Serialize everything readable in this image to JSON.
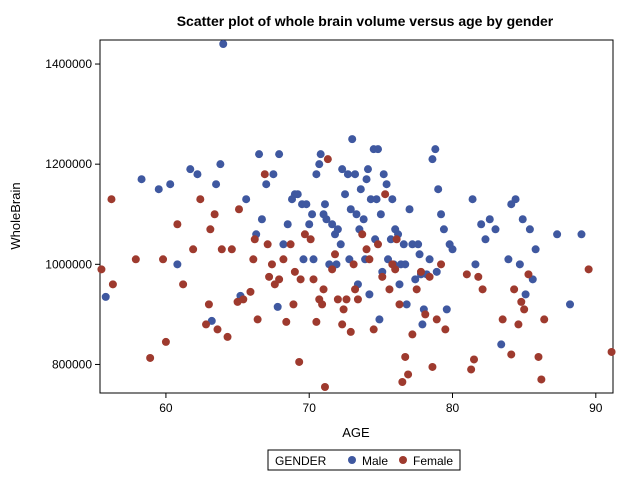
{
  "chart_data": {
    "type": "scatter",
    "title": "Scatter plot of whole brain volume versus age by gender",
    "xlabel": "AGE",
    "ylabel": "WholeBrain",
    "xlim": [
      55.4,
      91.2
    ],
    "ylim": [
      743000,
      1448000
    ],
    "x_ticks": [
      60,
      70,
      80,
      90
    ],
    "y_ticks": [
      800000,
      1000000,
      1200000,
      1400000
    ],
    "grid": false,
    "legend_title": "GENDER",
    "legend_position": "bottom-center",
    "series": [
      {
        "name": "Male",
        "color": "#3f58a0",
        "points": [
          [
            64.0,
            1440000
          ],
          [
            55.8,
            935000
          ],
          [
            58.3,
            1170000
          ],
          [
            59.5,
            1150000
          ],
          [
            60.3,
            1160000
          ],
          [
            60.8,
            1000000
          ],
          [
            61.7,
            1190000
          ],
          [
            62.2,
            1180000
          ],
          [
            63.5,
            1160000
          ],
          [
            63.8,
            1200000
          ],
          [
            65.2,
            937000
          ],
          [
            65.6,
            1130000
          ],
          [
            63.2,
            887000
          ],
          [
            66.3,
            1060000
          ],
          [
            66.5,
            1220000
          ],
          [
            66.7,
            1090000
          ],
          [
            67.0,
            1160000
          ],
          [
            67.5,
            1180000
          ],
          [
            67.9,
            1220000
          ],
          [
            67.8,
            915000
          ],
          [
            68.5,
            1080000
          ],
          [
            68.8,
            1130000
          ],
          [
            69.0,
            1140000
          ],
          [
            69.2,
            1140000
          ],
          [
            69.5,
            1120000
          ],
          [
            69.8,
            1120000
          ],
          [
            70.0,
            1080000
          ],
          [
            70.2,
            1100000
          ],
          [
            70.5,
            1180000
          ],
          [
            70.7,
            1200000
          ],
          [
            70.8,
            1220000
          ],
          [
            71.0,
            1100000
          ],
          [
            71.2,
            1090000
          ],
          [
            71.4,
            1000000
          ],
          [
            71.6,
            1080000
          ],
          [
            71.8,
            1060000
          ],
          [
            72.0,
            1070000
          ],
          [
            72.2,
            1040000
          ],
          [
            72.5,
            1140000
          ],
          [
            72.7,
            1180000
          ],
          [
            72.9,
            1110000
          ],
          [
            73.0,
            1250000
          ],
          [
            73.2,
            1180000
          ],
          [
            73.3,
            1100000
          ],
          [
            73.5,
            1070000
          ],
          [
            73.6,
            1150000
          ],
          [
            73.8,
            1090000
          ],
          [
            74.0,
            1170000
          ],
          [
            74.1,
            1190000
          ],
          [
            74.3,
            1130000
          ],
          [
            74.5,
            1230000
          ],
          [
            74.6,
            1050000
          ],
          [
            74.8,
            1230000
          ],
          [
            75.0,
            1100000
          ],
          [
            75.2,
            1180000
          ],
          [
            75.4,
            1160000
          ],
          [
            75.5,
            1010000
          ],
          [
            75.7,
            1050000
          ],
          [
            75.8,
            1130000
          ],
          [
            76.0,
            1070000
          ],
          [
            76.2,
            1060000
          ],
          [
            76.4,
            1000000
          ],
          [
            76.6,
            1040000
          ],
          [
            76.8,
            920000
          ],
          [
            77.0,
            1110000
          ],
          [
            77.2,
            1040000
          ],
          [
            77.4,
            970000
          ],
          [
            77.6,
            1040000
          ],
          [
            77.8,
            980000
          ],
          [
            78.0,
            910000
          ],
          [
            78.2,
            980000
          ],
          [
            78.4,
            1010000
          ],
          [
            78.6,
            1210000
          ],
          [
            78.8,
            1230000
          ],
          [
            79.0,
            1150000
          ],
          [
            79.2,
            1100000
          ],
          [
            79.4,
            1070000
          ],
          [
            79.6,
            910000
          ],
          [
            79.8,
            1040000
          ],
          [
            80.0,
            1030000
          ],
          [
            81.4,
            1130000
          ],
          [
            81.6,
            1000000
          ],
          [
            82.0,
            1080000
          ],
          [
            82.3,
            1050000
          ],
          [
            82.6,
            1090000
          ],
          [
            83.0,
            1070000
          ],
          [
            83.4,
            840000
          ],
          [
            83.9,
            1010000
          ],
          [
            84.1,
            1120000
          ],
          [
            84.4,
            1130000
          ],
          [
            84.7,
            1000000
          ],
          [
            84.9,
            1090000
          ],
          [
            85.1,
            940000
          ],
          [
            85.4,
            1070000
          ],
          [
            85.6,
            970000
          ],
          [
            85.8,
            1030000
          ],
          [
            87.3,
            1060000
          ],
          [
            88.2,
            920000
          ],
          [
            89.0,
            1060000
          ],
          [
            77.9,
            880000
          ],
          [
            72.8,
            1010000
          ],
          [
            70.3,
            1010000
          ],
          [
            71.9,
            1000000
          ],
          [
            74.2,
            940000
          ],
          [
            74.9,
            890000
          ],
          [
            76.7,
            1000000
          ],
          [
            73.4,
            960000
          ],
          [
            75.1,
            985000
          ],
          [
            72.3,
            1190000
          ],
          [
            71.1,
            1120000
          ],
          [
            74.7,
            1130000
          ],
          [
            73.9,
            1010000
          ],
          [
            75.9,
            1000000
          ],
          [
            76.3,
            960000
          ],
          [
            77.7,
            1020000
          ],
          [
            78.9,
            985000
          ],
          [
            69.6,
            1010000
          ],
          [
            68.2,
            1040000
          ]
        ]
      },
      {
        "name": "Female",
        "color": "#9e3a2e",
        "points": [
          [
            55.5,
            990000
          ],
          [
            56.2,
            1130000
          ],
          [
            56.3,
            960000
          ],
          [
            57.9,
            1010000
          ],
          [
            58.9,
            813000
          ],
          [
            59.8,
            1010000
          ],
          [
            60.0,
            845000
          ],
          [
            60.8,
            1080000
          ],
          [
            61.2,
            960000
          ],
          [
            61.9,
            1030000
          ],
          [
            62.4,
            1130000
          ],
          [
            62.8,
            880000
          ],
          [
            63.0,
            920000
          ],
          [
            63.1,
            1070000
          ],
          [
            63.4,
            1100000
          ],
          [
            63.6,
            870000
          ],
          [
            63.9,
            1030000
          ],
          [
            64.3,
            855000
          ],
          [
            64.6,
            1030000
          ],
          [
            65.0,
            925000
          ],
          [
            65.1,
            1110000
          ],
          [
            65.4,
            930000
          ],
          [
            65.9,
            945000
          ],
          [
            66.1,
            1010000
          ],
          [
            66.4,
            890000
          ],
          [
            66.9,
            1180000
          ],
          [
            67.1,
            1040000
          ],
          [
            67.4,
            1000000
          ],
          [
            67.6,
            960000
          ],
          [
            67.9,
            970000
          ],
          [
            68.2,
            1010000
          ],
          [
            68.4,
            885000
          ],
          [
            68.7,
            1040000
          ],
          [
            69.0,
            985000
          ],
          [
            69.3,
            805000
          ],
          [
            69.4,
            970000
          ],
          [
            69.7,
            1060000
          ],
          [
            70.1,
            1050000
          ],
          [
            70.3,
            970000
          ],
          [
            70.5,
            885000
          ],
          [
            70.7,
            930000
          ],
          [
            71.0,
            950000
          ],
          [
            71.1,
            755000
          ],
          [
            71.3,
            1210000
          ],
          [
            71.6,
            990000
          ],
          [
            71.8,
            1020000
          ],
          [
            72.0,
            930000
          ],
          [
            72.3,
            880000
          ],
          [
            72.6,
            930000
          ],
          [
            72.9,
            865000
          ],
          [
            73.1,
            1000000
          ],
          [
            73.4,
            930000
          ],
          [
            73.7,
            1060000
          ],
          [
            74.0,
            1030000
          ],
          [
            74.2,
            1010000
          ],
          [
            74.5,
            870000
          ],
          [
            74.8,
            1040000
          ],
          [
            75.1,
            975000
          ],
          [
            75.3,
            1140000
          ],
          [
            75.6,
            950000
          ],
          [
            75.8,
            1000000
          ],
          [
            76.1,
            1050000
          ],
          [
            76.3,
            920000
          ],
          [
            76.5,
            765000
          ],
          [
            76.7,
            815000
          ],
          [
            76.9,
            780000
          ],
          [
            77.2,
            860000
          ],
          [
            77.5,
            950000
          ],
          [
            77.8,
            985000
          ],
          [
            78.1,
            900000
          ],
          [
            78.4,
            975000
          ],
          [
            78.6,
            795000
          ],
          [
            78.9,
            890000
          ],
          [
            79.2,
            1000000
          ],
          [
            79.5,
            870000
          ],
          [
            81.0,
            980000
          ],
          [
            81.3,
            790000
          ],
          [
            81.5,
            810000
          ],
          [
            81.8,
            975000
          ],
          [
            82.1,
            950000
          ],
          [
            83.5,
            890000
          ],
          [
            84.1,
            820000
          ],
          [
            84.3,
            950000
          ],
          [
            84.6,
            880000
          ],
          [
            84.8,
            925000
          ],
          [
            85.0,
            910000
          ],
          [
            85.3,
            980000
          ],
          [
            86.0,
            815000
          ],
          [
            86.2,
            770000
          ],
          [
            86.4,
            890000
          ],
          [
            89.5,
            990000
          ],
          [
            91.1,
            825000
          ],
          [
            76.0,
            990000
          ],
          [
            73.2,
            950000
          ],
          [
            72.4,
            910000
          ],
          [
            70.9,
            920000
          ],
          [
            68.9,
            920000
          ],
          [
            67.2,
            975000
          ],
          [
            66.2,
            1050000
          ]
        ]
      }
    ]
  }
}
